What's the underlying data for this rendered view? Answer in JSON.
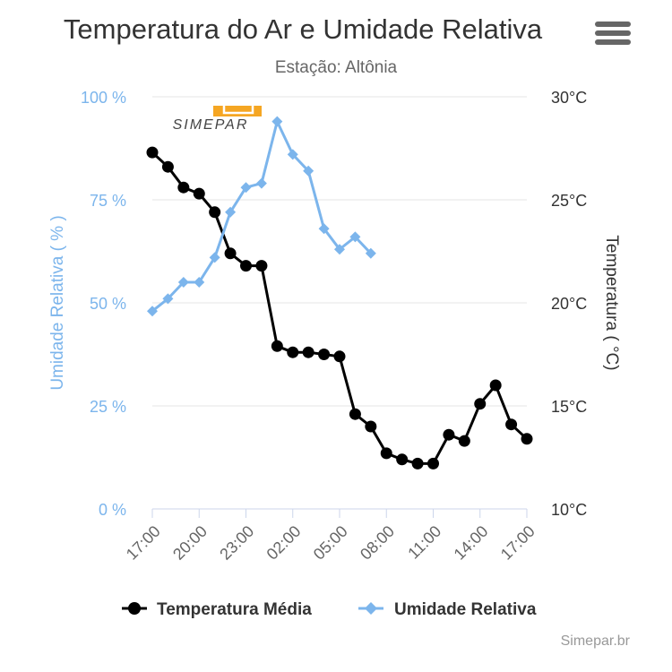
{
  "chart_data": {
    "type": "line",
    "title": "Temperatura do Ar e Umidade Relativa",
    "subtitle": "Estação: Altônia",
    "logo_text": "SIMEPAR",
    "credits": "Simepar.br",
    "x_tick_labels": [
      "17:00",
      "20:00",
      "23:00",
      "02:00",
      "05:00",
      "08:00",
      "11:00",
      "14:00",
      "17:00"
    ],
    "x_range_hours": [
      0,
      24
    ],
    "left_axis": {
      "label": "Umidade Relativa ( % )",
      "range": [
        0,
        100
      ],
      "ticks": [
        0,
        25,
        50,
        75,
        100
      ],
      "tick_labels": [
        "0 %",
        "25 %",
        "50 %",
        "75 %",
        "100 %"
      ],
      "color": "#7cb5ec"
    },
    "right_axis": {
      "label": "Temperatura ( °C)",
      "range": [
        10,
        30
      ],
      "ticks": [
        10,
        15,
        20,
        25,
        30
      ],
      "tick_labels": [
        "10°C",
        "15°C",
        "20°C",
        "25°C",
        "30°C"
      ],
      "color": "#333333"
    },
    "grid": true,
    "legend_position": "bottom",
    "series": [
      {
        "name": "Temperatura Média",
        "axis": "right",
        "color": "#000000",
        "marker": "circle",
        "x": [
          0,
          1,
          2,
          3,
          4,
          5,
          6,
          7,
          8,
          9,
          10,
          11,
          12,
          13,
          14,
          15,
          16,
          17,
          18,
          19,
          20,
          21,
          22,
          23,
          24
        ],
        "values": [
          27.3,
          26.6,
          25.6,
          25.3,
          24.4,
          22.4,
          21.8,
          21.8,
          17.9,
          17.6,
          17.6,
          17.5,
          17.4,
          14.6,
          14.0,
          12.7,
          12.4,
          12.2,
          12.2,
          13.6,
          13.3,
          15.1,
          16.0,
          14.1,
          13.4
        ]
      },
      {
        "name": "Umidade Relativa",
        "axis": "left",
        "color": "#7cb5ec",
        "marker": "diamond",
        "x": [
          0,
          1,
          2,
          3,
          4,
          5,
          6,
          7,
          8,
          9,
          10,
          11,
          12,
          13,
          14
        ],
        "values": [
          48,
          51,
          55,
          55,
          61,
          72,
          78,
          79,
          94,
          86,
          82,
          68,
          63,
          66,
          62
        ]
      }
    ]
  }
}
